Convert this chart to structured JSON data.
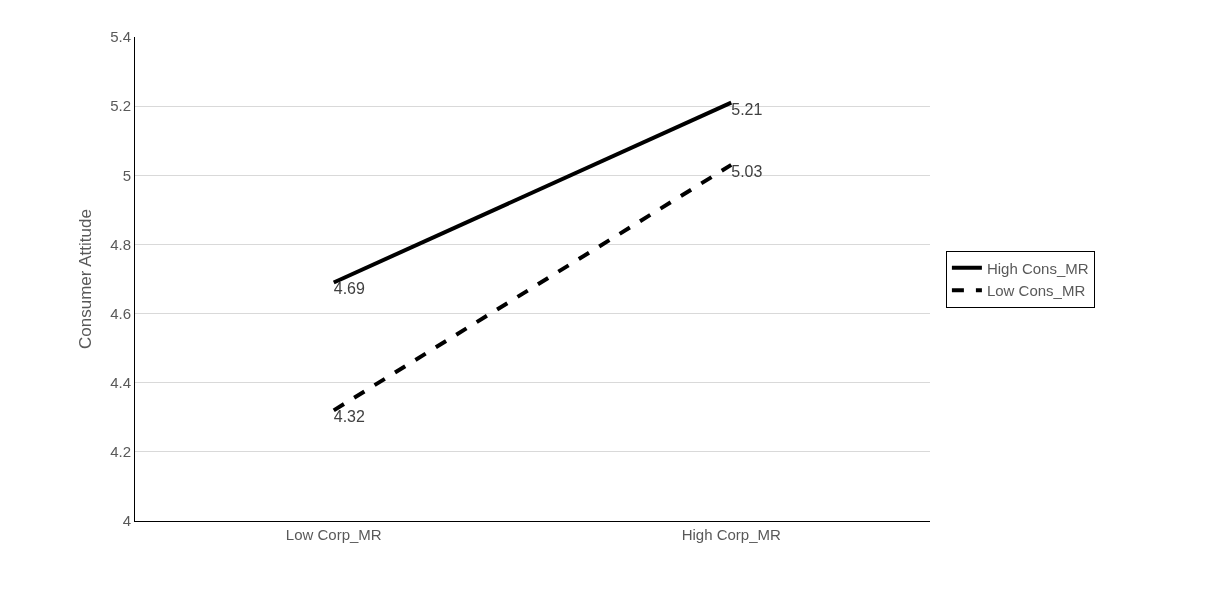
{
  "chart_data": {
    "type": "line",
    "ylabel": "Consumer Attitude",
    "categories": [
      "Low Corp_MR",
      "High Corp_MR"
    ],
    "series": [
      {
        "name": "High Cons_MR",
        "color": "#000000",
        "line_style": "solid",
        "values": [
          4.69,
          5.21
        ]
      },
      {
        "name": "Low Cons_MR",
        "color": "#000000",
        "line_style": "dashed",
        "values": [
          4.32,
          5.03
        ]
      }
    ],
    "ylim": [
      4,
      5.4
    ],
    "yticks": [
      4,
      4.2,
      4.4,
      4.6,
      4.8,
      5,
      5.2,
      5.4
    ],
    "grid": "y",
    "legend": "right",
    "marker": "none",
    "data_labels": true
  }
}
